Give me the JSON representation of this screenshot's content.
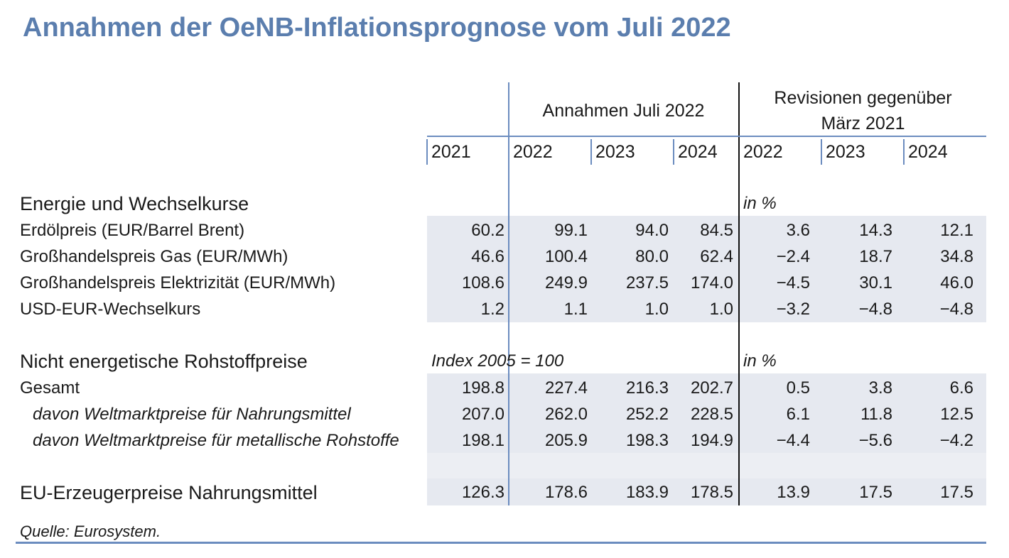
{
  "title": "Annahmen der OeNB-Inflationsprognose vom Juli 2022",
  "header": {
    "assumptions": "Annahmen Juli 2022",
    "revisions_line1": "Revisionen gegenüber",
    "revisions_line2": "März 2021",
    "years": [
      "2021",
      "2022",
      "2023",
      "2024",
      "2022",
      "2023",
      "2024"
    ]
  },
  "sections": {
    "energy": {
      "title": "Energie und Wechselkurse",
      "revision_unit": "in %"
    },
    "commodities": {
      "title": "Nicht energetische Rohstoffpreise",
      "index_note": "Index 2005 = 100",
      "revision_unit": "in %"
    }
  },
  "rows": [
    {
      "label": "Erdölpreis (EUR/Barrel Brent)",
      "values": [
        "60.2",
        "99.1",
        "94.0",
        "84.5",
        "3.6",
        "14.3",
        "12.1"
      ]
    },
    {
      "label": "Großhandelspreis Gas (EUR/MWh)",
      "values": [
        "46.6",
        "100.4",
        "80.0",
        "62.4",
        "−2.4",
        "18.7",
        "34.8"
      ]
    },
    {
      "label": "Großhandelspreis Elektrizität (EUR/MWh)",
      "values": [
        "108.6",
        "249.9",
        "237.5",
        "174.0",
        "−4.5",
        "30.1",
        "46.0"
      ]
    },
    {
      "label": "USD-EUR-Wechselkurs",
      "values": [
        "1.2",
        "1.1",
        "1.0",
        "1.0",
        "−3.2",
        "−4.8",
        "−4.8"
      ]
    },
    {
      "label": "Gesamt",
      "values": [
        "198.8",
        "227.4",
        "216.3",
        "202.7",
        "0.5",
        "3.8",
        "6.6"
      ]
    },
    {
      "label": "davon Weltmarktpreise für Nahrungsmittel",
      "values": [
        "207.0",
        "262.0",
        "252.2",
        "228.5",
        "6.1",
        "11.8",
        "12.5"
      ]
    },
    {
      "label": "davon Weltmarktpreise für metallische Rohstoffe",
      "values": [
        "198.1",
        "205.9",
        "198.3",
        "194.9",
        "−4.4",
        "−5.6",
        "−4.2"
      ]
    },
    {
      "label": "EU-Erzeugerpreise Nahrungsmittel",
      "values": [
        "126.3",
        "178.6",
        "183.9",
        "178.5",
        "13.9",
        "17.5",
        "17.5"
      ]
    }
  ],
  "source": "Quelle: Eurosystem."
}
